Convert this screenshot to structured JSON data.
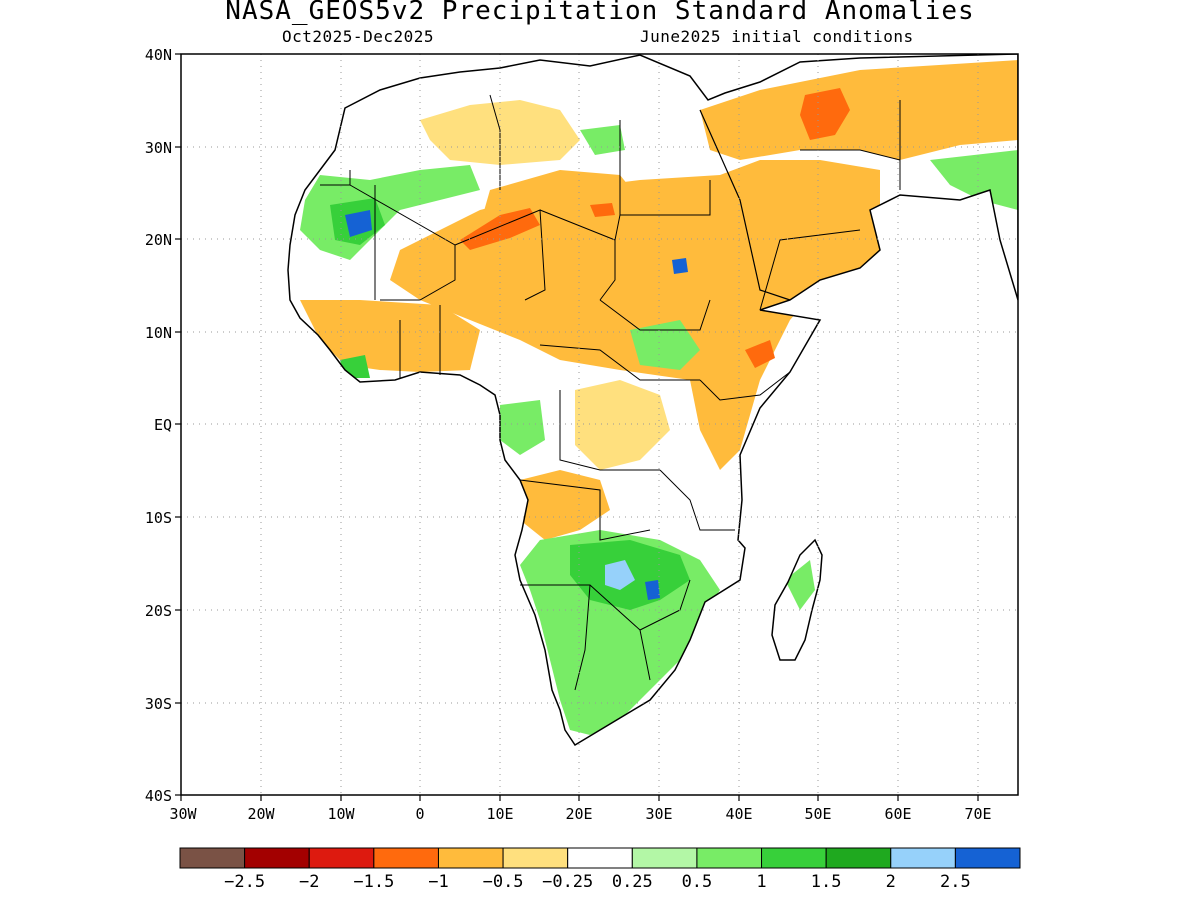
{
  "title": "NASA_GEOS5v2 Precipitation Standard Anomalies",
  "subtitle_left": "Oct2025-Dec2025",
  "subtitle_right": "June2025 initial conditions",
  "map": {
    "lon_range": [
      -30,
      75
    ],
    "lat_range": [
      -40,
      40
    ],
    "lat_ticks": [
      "40N",
      "30N",
      "20N",
      "10N",
      "EQ",
      "10S",
      "20S",
      "30S",
      "40S"
    ],
    "lon_ticks": [
      "30W",
      "20W",
      "10W",
      "0",
      "10E",
      "20E",
      "30E",
      "40E",
      "50E",
      "60E",
      "70E"
    ],
    "grid": true
  },
  "colorbar": {
    "colors": [
      "#7a5245",
      "#a30000",
      "#dd1a0f",
      "#ff6a0d",
      "#ffbb3c",
      "#ffe07e",
      "#ffffff",
      "#b3f7a6",
      "#78ec66",
      "#37d03a",
      "#1fa91f",
      "#96d1fa",
      "#1562d4"
    ],
    "labels": [
      "-2.5",
      "-2",
      "-1.5",
      "-1",
      "-0.5",
      "-0.25",
      "0.25",
      "0.5",
      "1",
      "1.5",
      "2",
      "2.5"
    ]
  }
}
